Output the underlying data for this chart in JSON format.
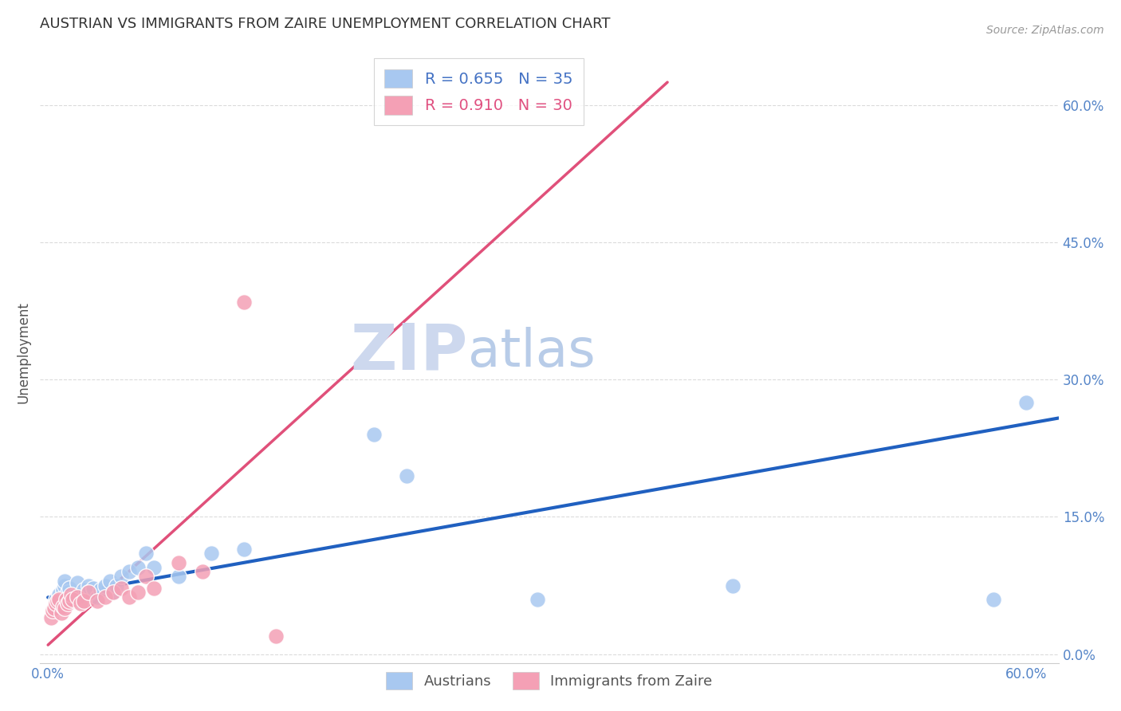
{
  "title": "AUSTRIAN VS IMMIGRANTS FROM ZAIRE UNEMPLOYMENT CORRELATION CHART",
  "source": "Source: ZipAtlas.com",
  "ylabel": "Unemployment",
  "ytick_labels": [
    "0.0%",
    "15.0%",
    "30.0%",
    "45.0%",
    "60.0%"
  ],
  "ytick_values": [
    0.0,
    0.15,
    0.3,
    0.45,
    0.6
  ],
  "xtick_values": [
    0.0,
    0.12,
    0.24,
    0.36,
    0.48,
    0.6
  ],
  "xlim": [
    -0.005,
    0.62
  ],
  "ylim": [
    -0.01,
    0.67
  ],
  "austrians": {
    "scatter_color": "#a8c8f0",
    "line_color": "#2060c0",
    "x": [
      0.005,
      0.007,
      0.008,
      0.009,
      0.01,
      0.01,
      0.012,
      0.013,
      0.015,
      0.016,
      0.018,
      0.02,
      0.022,
      0.025,
      0.025,
      0.028,
      0.03,
      0.032,
      0.035,
      0.038,
      0.04,
      0.042,
      0.045,
      0.05,
      0.055,
      0.06,
      0.065,
      0.08,
      0.1,
      0.12,
      0.2,
      0.22,
      0.3,
      0.42,
      0.58,
      0.6
    ],
    "y": [
      0.06,
      0.065,
      0.055,
      0.07,
      0.075,
      0.08,
      0.068,
      0.072,
      0.058,
      0.063,
      0.078,
      0.065,
      0.07,
      0.075,
      0.068,
      0.072,
      0.062,
      0.07,
      0.075,
      0.08,
      0.068,
      0.075,
      0.085,
      0.09,
      0.095,
      0.11,
      0.095,
      0.085,
      0.11,
      0.115,
      0.24,
      0.195,
      0.06,
      0.075,
      0.06,
      0.275
    ],
    "trend_x": [
      0.0,
      0.62
    ],
    "trend_y": [
      0.062,
      0.258
    ]
  },
  "zaire": {
    "scatter_color": "#f4a0b5",
    "line_color": "#e0507a",
    "x": [
      0.002,
      0.003,
      0.004,
      0.005,
      0.006,
      0.007,
      0.008,
      0.009,
      0.01,
      0.011,
      0.012,
      0.013,
      0.014,
      0.015,
      0.018,
      0.02,
      0.022,
      0.025,
      0.03,
      0.035,
      0.04,
      0.045,
      0.05,
      0.055,
      0.06,
      0.065,
      0.08,
      0.095,
      0.12,
      0.14
    ],
    "y": [
      0.04,
      0.048,
      0.05,
      0.055,
      0.058,
      0.06,
      0.045,
      0.052,
      0.05,
      0.06,
      0.055,
      0.058,
      0.065,
      0.06,
      0.062,
      0.055,
      0.058,
      0.068,
      0.058,
      0.062,
      0.068,
      0.072,
      0.062,
      0.068,
      0.085,
      0.072,
      0.1,
      0.09,
      0.385,
      0.02
    ],
    "trend_x": [
      0.0,
      0.38
    ],
    "trend_y": [
      0.01,
      0.625
    ]
  },
  "background_color": "#ffffff",
  "grid_color": "#cccccc",
  "title_fontsize": 13,
  "axis_label_fontsize": 12,
  "tick_fontsize": 12,
  "source_fontsize": 10,
  "watermark_zip": "ZIP",
  "watermark_atlas": "atlas",
  "watermark_color_zip": "#cdd8ee",
  "watermark_color_atlas": "#b8cce8",
  "watermark_fontsize": 58
}
